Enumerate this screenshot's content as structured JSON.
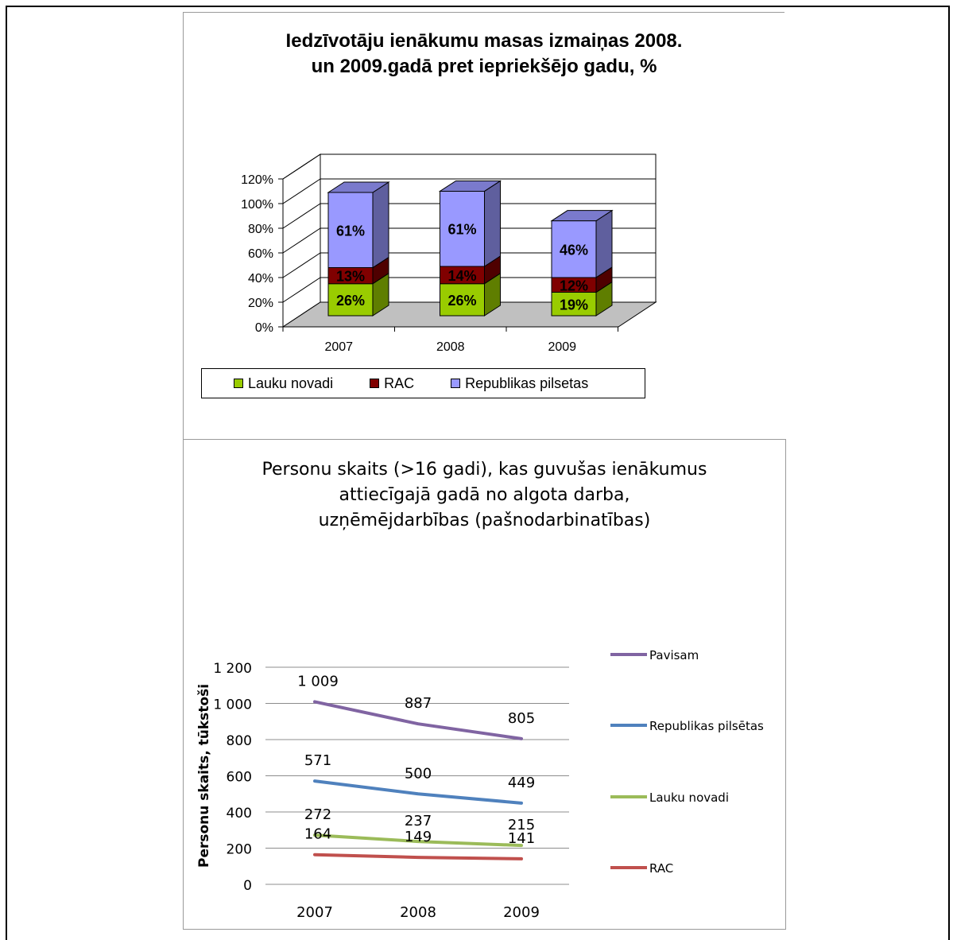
{
  "chart_data": [
    {
      "type": "bar",
      "stacked": true,
      "three_d": true,
      "title": [
        "Iedzīvotāju ienākumu masas izmaiņas 2008.",
        "un 2009.gadā pret iepriekšējo gadu, %"
      ],
      "categories": [
        "2007",
        "2008",
        "2009"
      ],
      "ylim": [
        0,
        120
      ],
      "yticks": [
        "0%",
        "20%",
        "40%",
        "60%",
        "80%",
        "100%",
        "120%"
      ],
      "grid": true,
      "legend_position": "bottom",
      "series": [
        {
          "name": "Lauku novadi",
          "values": [
            26,
            26,
            19
          ],
          "labels": [
            "26%",
            "26%",
            "19%"
          ],
          "color": "#99cc00"
        },
        {
          "name": "RAC",
          "values": [
            13,
            14,
            12
          ],
          "labels": [
            "13%",
            "14%",
            "12%"
          ],
          "color": "#800000"
        },
        {
          "name": "Republikas pilsetas",
          "values": [
            61,
            61,
            46
          ],
          "labels": [
            "61%",
            "61%",
            "46%"
          ],
          "color": "#9999ff"
        }
      ]
    },
    {
      "type": "line",
      "title": [
        "Personu skaits (>16 gadi), kas guvušas ienākumus",
        "attiecīgajā gadā no algota darba,",
        "uzņēmējdarbības (pašnodarbinatības)"
      ],
      "ylabel": "Personu skaits, tūkstoši",
      "categories": [
        "2007",
        "2008",
        "2009"
      ],
      "ylim": [
        0,
        1200
      ],
      "yticks": [
        "0",
        "200",
        "400",
        "600",
        "800",
        "1 000",
        "1 200"
      ],
      "grid": true,
      "legend_position": "right",
      "series": [
        {
          "name": "Pavisam",
          "values": [
            1009,
            887,
            805
          ],
          "labels": [
            "1 009",
            "887",
            "805"
          ],
          "color": "#8064a2"
        },
        {
          "name": "Republikas pilsētas",
          "values": [
            571,
            500,
            449
          ],
          "labels": [
            "571",
            "500",
            "449"
          ],
          "color": "#4f81bd"
        },
        {
          "name": "Lauku novadi",
          "values": [
            272,
            237,
            215
          ],
          "labels": [
            "272",
            "237",
            "215"
          ],
          "color": "#9bbb59"
        },
        {
          "name": "RAC",
          "values": [
            164,
            149,
            141
          ],
          "labels": [
            "164",
            "149",
            "141"
          ],
          "color": "#c0504d"
        }
      ]
    }
  ]
}
